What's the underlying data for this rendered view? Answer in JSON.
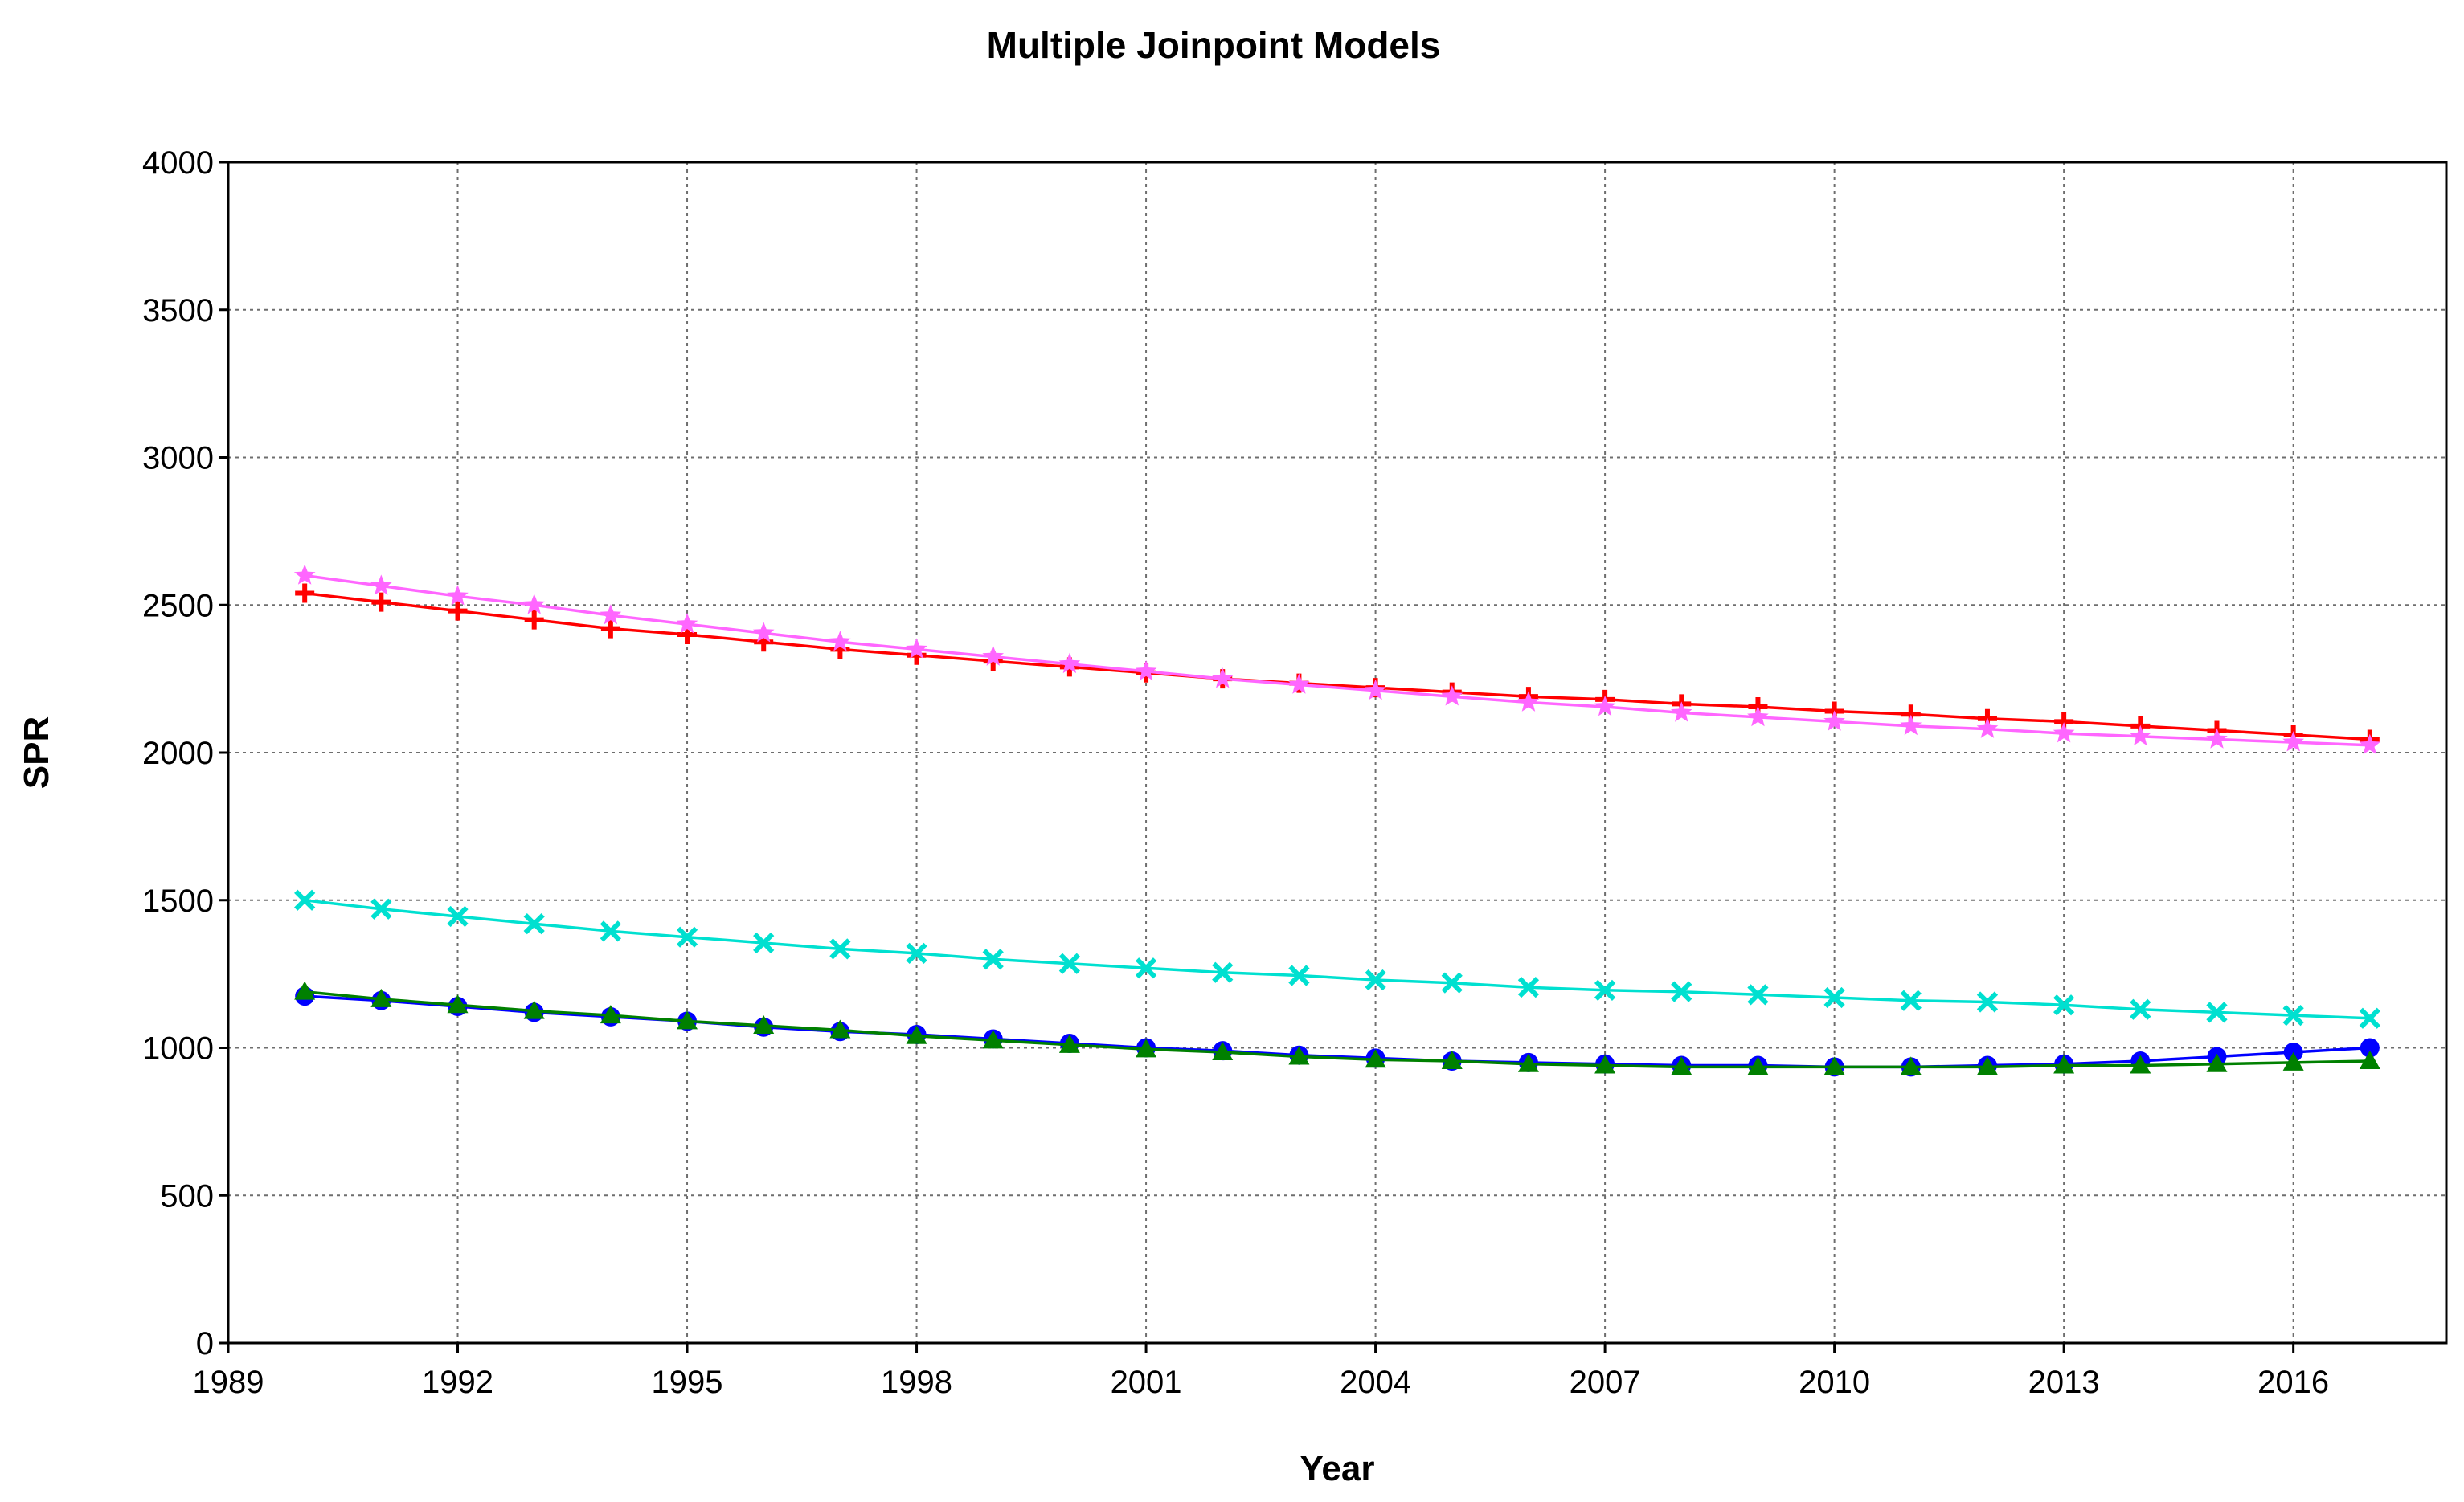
{
  "chart_data": {
    "type": "line",
    "title": "Multiple Joinpoint Models",
    "xlabel": "Year",
    "ylabel": "SPR",
    "xlim": [
      1989,
      2018
    ],
    "ylim": [
      0,
      4000
    ],
    "x_ticks": [
      1989,
      1992,
      1995,
      1998,
      2001,
      2004,
      2007,
      2010,
      2013,
      2016
    ],
    "y_ticks": [
      0,
      500,
      1000,
      1500,
      2000,
      2500,
      3000,
      3500,
      4000
    ],
    "grid": true,
    "x": [
      1990,
      1991,
      1992,
      1993,
      1994,
      1995,
      1996,
      1997,
      1998,
      1999,
      2000,
      2001,
      2002,
      2003,
      2004,
      2005,
      2006,
      2007,
      2008,
      2009,
      2010,
      2011,
      2012,
      2013,
      2014,
      2015,
      2016,
      2017
    ],
    "series": [
      {
        "name": "red-plus",
        "color": "#ff0000",
        "marker": "plus",
        "values": [
          2540,
          2510,
          2480,
          2450,
          2420,
          2400,
          2375,
          2350,
          2330,
          2310,
          2290,
          2270,
          2250,
          2235,
          2220,
          2205,
          2190,
          2180,
          2165,
          2155,
          2140,
          2130,
          2115,
          2105,
          2090,
          2075,
          2060,
          2045
        ]
      },
      {
        "name": "violet-star",
        "color": "#ff66ff",
        "marker": "star",
        "values": [
          2600,
          2565,
          2530,
          2500,
          2465,
          2435,
          2405,
          2375,
          2350,
          2325,
          2300,
          2275,
          2250,
          2230,
          2210,
          2190,
          2170,
          2155,
          2135,
          2120,
          2105,
          2090,
          2080,
          2065,
          2055,
          2045,
          2035,
          2025
        ]
      },
      {
        "name": "cyan-cross",
        "color": "#00e0d0",
        "marker": "x",
        "values": [
          1500,
          1470,
          1445,
          1420,
          1395,
          1375,
          1355,
          1335,
          1320,
          1300,
          1285,
          1270,
          1255,
          1245,
          1230,
          1220,
          1205,
          1195,
          1190,
          1180,
          1170,
          1160,
          1155,
          1145,
          1130,
          1120,
          1110,
          1100
        ]
      },
      {
        "name": "blue-circle",
        "color": "#0000ff",
        "marker": "circle",
        "values": [
          1175,
          1160,
          1140,
          1120,
          1105,
          1090,
          1070,
          1055,
          1045,
          1030,
          1015,
          1000,
          990,
          975,
          965,
          955,
          950,
          945,
          940,
          940,
          935,
          935,
          940,
          945,
          955,
          970,
          985,
          1000
        ]
      },
      {
        "name": "green-triangle",
        "color": "#008000",
        "marker": "triangle",
        "values": [
          1190,
          1165,
          1145,
          1125,
          1110,
          1090,
          1075,
          1060,
          1040,
          1025,
          1010,
          995,
          985,
          970,
          960,
          955,
          945,
          940,
          935,
          935,
          935,
          935,
          935,
          940,
          940,
          945,
          950,
          955
        ]
      }
    ]
  }
}
